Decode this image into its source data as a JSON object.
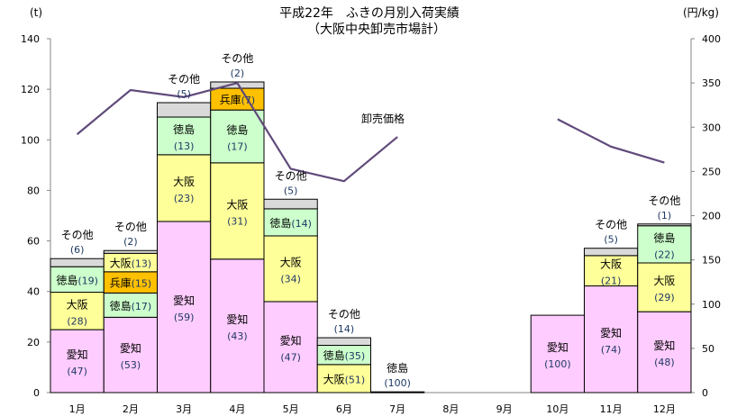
{
  "chart_data": {
    "type": "bar",
    "stacked": true,
    "title": "平成22年　ふきの月別入荷実績",
    "subtitle": "（大阪中央卸売市場計）",
    "ylabel": "(t)",
    "y2label": "(円/kg)",
    "ylim": [
      0,
      140
    ],
    "yticks": [
      0,
      20,
      40,
      60,
      80,
      100,
      120,
      140
    ],
    "y2lim": [
      0,
      400
    ],
    "y2ticks": [
      0,
      50,
      100,
      150,
      200,
      250,
      300,
      350,
      400
    ],
    "categories": [
      "1月",
      "2月",
      "3月",
      "4月",
      "5月",
      "6月",
      "7月",
      "8月",
      "9月",
      "10月",
      "11月",
      "12月"
    ],
    "origin_colors": {
      "愛知": "#FFCCFF",
      "大阪": "#FFFF99",
      "徳島": "#CCFFCC",
      "兵庫": "#FFC000",
      "その他": "#D9D9D9"
    },
    "bars": [
      {
        "month": "1月",
        "segments": [
          {
            "origin": "愛知",
            "tons": 24.9,
            "share": 47
          },
          {
            "origin": "大阪",
            "tons": 14.8,
            "share": 28
          },
          {
            "origin": "徳島",
            "tons": 10.1,
            "share": 19
          },
          {
            "origin": "その他",
            "tons": 3.2,
            "share": 6
          }
        ]
      },
      {
        "month": "2月",
        "segments": [
          {
            "origin": "愛知",
            "tons": 29.8,
            "share": 53
          },
          {
            "origin": "徳島",
            "tons": 9.6,
            "share": 17
          },
          {
            "origin": "兵庫",
            "tons": 8.4,
            "share": 15
          },
          {
            "origin": "大阪",
            "tons": 7.3,
            "share": 13
          },
          {
            "origin": "その他",
            "tons": 1.1,
            "share": 2
          }
        ]
      },
      {
        "month": "3月",
        "segments": [
          {
            "origin": "愛知",
            "tons": 67.7,
            "share": 59
          },
          {
            "origin": "大阪",
            "tons": 26.4,
            "share": 23
          },
          {
            "origin": "徳島",
            "tons": 14.9,
            "share": 13
          },
          {
            "origin": "その他",
            "tons": 5.7,
            "share": 5
          }
        ]
      },
      {
        "month": "4月",
        "segments": [
          {
            "origin": "愛知",
            "tons": 52.8,
            "share": 43
          },
          {
            "origin": "大阪",
            "tons": 38.1,
            "share": 31
          },
          {
            "origin": "徳島",
            "tons": 20.9,
            "share": 17
          },
          {
            "origin": "兵庫",
            "tons": 8.6,
            "share": 7
          },
          {
            "origin": "その他",
            "tons": 2.5,
            "share": 2
          }
        ]
      },
      {
        "month": "5月",
        "segments": [
          {
            "origin": "愛知",
            "tons": 36.0,
            "share": 47
          },
          {
            "origin": "大阪",
            "tons": 26.0,
            "share": 34
          },
          {
            "origin": "徳島",
            "tons": 10.7,
            "share": 14
          },
          {
            "origin": "その他",
            "tons": 3.8,
            "share": 5
          }
        ]
      },
      {
        "month": "6月",
        "segments": [
          {
            "origin": "大阪",
            "tons": 11.1,
            "share": 51
          },
          {
            "origin": "徳島",
            "tons": 7.6,
            "share": 35
          },
          {
            "origin": "その他",
            "tons": 3.0,
            "share": 14
          }
        ]
      },
      {
        "month": "7月",
        "segments": [
          {
            "origin": "徳島",
            "tons": 0.3,
            "share": 100
          }
        ]
      },
      {
        "month": "8月",
        "segments": []
      },
      {
        "month": "9月",
        "segments": []
      },
      {
        "month": "10月",
        "segments": [
          {
            "origin": "愛知",
            "tons": 30.6,
            "share": 100
          }
        ]
      },
      {
        "month": "11月",
        "segments": [
          {
            "origin": "愛知",
            "tons": 42.2,
            "share": 74
          },
          {
            "origin": "大阪",
            "tons": 12.0,
            "share": 21
          },
          {
            "origin": "その他",
            "tons": 2.9,
            "share": 5
          }
        ]
      },
      {
        "month": "12月",
        "segments": [
          {
            "origin": "愛知",
            "tons": 32.0,
            "share": 48
          },
          {
            "origin": "大阪",
            "tons": 19.3,
            "share": 29
          },
          {
            "origin": "徳島",
            "tons": 14.7,
            "share": 22
          },
          {
            "origin": "その他",
            "tons": 0.7,
            "share": 1
          }
        ]
      }
    ],
    "price_series": {
      "name": "卸売価格",
      "color": "#604A7B",
      "values": [
        292,
        342,
        334,
        350,
        253,
        239,
        289,
        null,
        null,
        309,
        278,
        260
      ]
    }
  }
}
